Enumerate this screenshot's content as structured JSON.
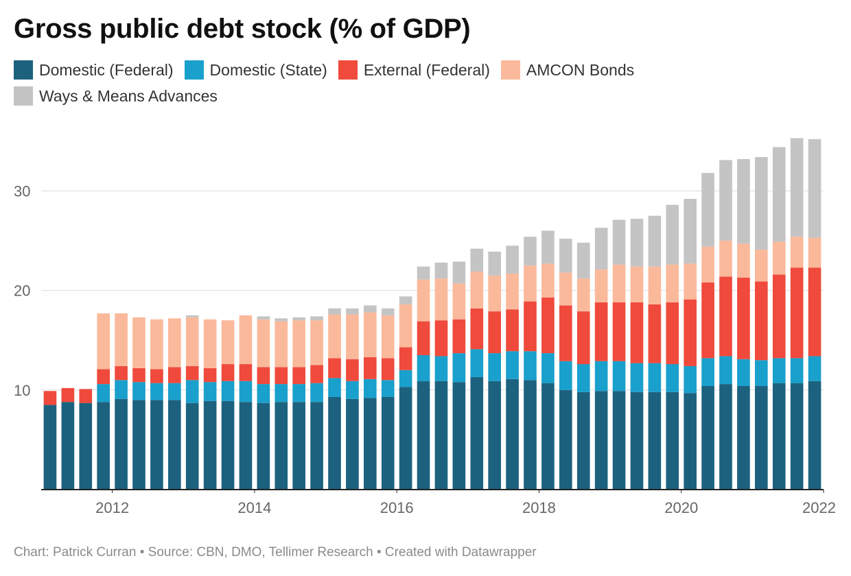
{
  "title": "Gross public debt stock (% of GDP)",
  "source": "Chart: Patrick Curran • Source: CBN, DMO, Tellimer Research • Created with Datawrapper",
  "chart_data": {
    "type": "bar",
    "stacked": true,
    "title": "Gross public debt stock (% of GDP)",
    "ylim": [
      0,
      35
    ],
    "yticks": [
      10,
      20,
      30
    ],
    "xtick_labels": [
      "2012",
      "2014",
      "2016",
      "2018",
      "2020",
      "2022"
    ],
    "xlim": [
      2011.0,
      2022.0
    ],
    "x": [
      2011.0,
      2011.25,
      2011.5,
      2011.75,
      2012.0,
      2012.25,
      2012.5,
      2012.75,
      2013.0,
      2013.25,
      2013.5,
      2013.75,
      2014.0,
      2014.25,
      2014.5,
      2014.75,
      2015.0,
      2015.25,
      2015.5,
      2015.75,
      2016.0,
      2016.25,
      2016.5,
      2016.75,
      2017.0,
      2017.25,
      2017.5,
      2017.75,
      2018.0,
      2018.25,
      2018.5,
      2018.75,
      2019.0,
      2019.25,
      2019.5,
      2019.75,
      2020.0,
      2020.25,
      2020.5,
      2020.75,
      2021.0,
      2021.25,
      2021.5,
      2021.75
    ],
    "grid": true,
    "legend_position": "top",
    "series": [
      {
        "name": "Domestic (Federal)",
        "color": "#1c627e",
        "values": [
          8.5,
          8.8,
          8.7,
          8.8,
          9.1,
          9.0,
          9.0,
          9.0,
          8.7,
          8.9,
          8.9,
          8.8,
          8.7,
          8.8,
          8.8,
          8.8,
          9.3,
          9.1,
          9.2,
          9.3,
          10.3,
          10.9,
          10.9,
          10.8,
          11.3,
          10.9,
          11.1,
          11.0,
          10.7,
          10.0,
          9.8,
          9.9,
          9.9,
          9.8,
          9.8,
          9.8,
          9.7,
          10.4,
          10.6,
          10.4,
          10.4,
          10.7,
          10.7,
          10.9
        ]
      },
      {
        "name": "Domestic (State)",
        "color": "#19a0cc",
        "values": [
          0,
          0,
          0,
          1.8,
          1.9,
          1.8,
          1.7,
          1.7,
          2.3,
          1.9,
          2.0,
          2.1,
          1.9,
          1.8,
          1.8,
          1.9,
          1.9,
          1.8,
          1.9,
          1.7,
          1.7,
          2.6,
          2.5,
          2.9,
          2.8,
          2.8,
          2.8,
          2.9,
          3.0,
          2.9,
          2.8,
          3.0,
          3.0,
          2.9,
          2.9,
          2.8,
          2.7,
          2.8,
          2.8,
          2.7,
          2.6,
          2.5,
          2.5,
          2.5
        ]
      },
      {
        "name": "External (Federal)",
        "color": "#ef4a3c",
        "values": [
          1.4,
          1.4,
          1.4,
          1.5,
          1.4,
          1.4,
          1.4,
          1.6,
          1.4,
          1.4,
          1.7,
          1.7,
          1.7,
          1.7,
          1.7,
          1.8,
          2.0,
          2.2,
          2.2,
          2.2,
          2.3,
          3.4,
          3.6,
          3.4,
          4.1,
          4.2,
          4.2,
          5.0,
          5.6,
          5.6,
          5.3,
          5.9,
          5.9,
          6.1,
          5.9,
          6.2,
          6.7,
          7.6,
          8.0,
          8.2,
          7.9,
          8.4,
          9.1,
          8.9
        ]
      },
      {
        "name": "AMCON Bonds",
        "color": "#fbb99b",
        "values": [
          0,
          0,
          0,
          5.6,
          5.3,
          5.1,
          5.0,
          4.9,
          4.9,
          4.9,
          4.4,
          4.9,
          4.8,
          4.6,
          4.7,
          4.5,
          4.4,
          4.5,
          4.5,
          4.3,
          4.3,
          4.2,
          4.2,
          3.6,
          3.7,
          3.6,
          3.6,
          3.6,
          3.4,
          3.3,
          3.3,
          3.3,
          3.8,
          3.6,
          3.8,
          3.8,
          3.6,
          3.6,
          3.6,
          3.4,
          3.2,
          3.3,
          3.1,
          3.0
        ]
      },
      {
        "name": "Ways & Means Advances",
        "color": "#c4c4c4",
        "values": [
          0,
          0,
          0,
          0,
          0,
          0,
          0,
          0,
          0.2,
          0,
          0,
          0,
          0.3,
          0.3,
          0.3,
          0.4,
          0.6,
          0.6,
          0.7,
          0.7,
          0.8,
          1.3,
          1.6,
          2.2,
          2.3,
          2.4,
          2.8,
          2.9,
          3.3,
          3.4,
          3.6,
          4.2,
          4.5,
          4.8,
          5.1,
          6.0,
          6.5,
          7.4,
          8.1,
          8.5,
          9.3,
          9.5,
          9.9,
          9.9
        ]
      }
    ]
  }
}
